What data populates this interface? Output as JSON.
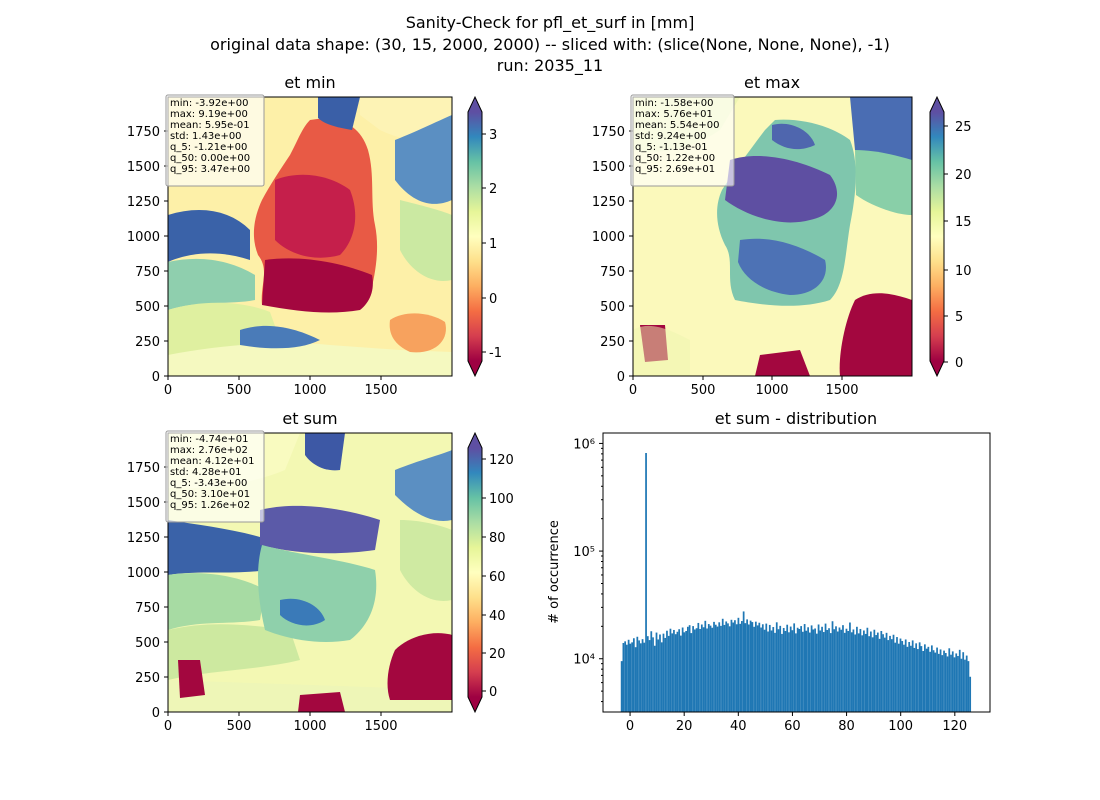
{
  "figure": {
    "title_lines": [
      "Sanity-Check for pfl_et_surf in [mm]",
      "original data shape: (30, 15, 2000, 2000) -- sliced with: (slice(None, None, None), -1)",
      "run: 2035_11"
    ]
  },
  "chart_data": [
    {
      "type": "heatmap",
      "title": "et min",
      "xlim": [
        0,
        2000
      ],
      "ylim": [
        0,
        2000
      ],
      "x_ticks": [
        0,
        500,
        1000,
        1500
      ],
      "y_ticks": [
        0,
        250,
        500,
        750,
        1000,
        1250,
        1500,
        1750
      ],
      "colormap": "Spectral",
      "colorbar": {
        "range": [
          -1.21,
          3.47
        ],
        "ticks": [
          -1,
          0,
          1,
          2,
          3
        ],
        "extend": "both"
      },
      "stats": [
        "min: -3.92e+00",
        "max: 9.19e+00",
        "mean: 5.95e-01",
        "std: 1.43e+00",
        "q_5: -1.21e+00",
        "q_50: 0.00e+00",
        "q_95: 3.47e+00"
      ]
    },
    {
      "type": "heatmap",
      "title": "et max",
      "xlim": [
        0,
        2000
      ],
      "ylim": [
        0,
        2000
      ],
      "x_ticks": [
        0,
        500,
        1000,
        1500
      ],
      "y_ticks": [
        0,
        250,
        500,
        750,
        1000,
        1250,
        1500,
        1750
      ],
      "colormap": "Spectral",
      "colorbar": {
        "range": [
          -0.113,
          26.9
        ],
        "ticks": [
          0,
          5,
          10,
          15,
          20,
          25
        ],
        "extend": "both"
      },
      "stats": [
        "min: -1.58e+00",
        "max: 5.76e+01",
        "mean: 5.54e+00",
        "std: 9.24e+00",
        "q_5: -1.13e-01",
        "q_50: 1.22e+00",
        "q_95: 2.69e+01"
      ]
    },
    {
      "type": "heatmap",
      "title": "et sum",
      "xlim": [
        0,
        2000
      ],
      "ylim": [
        0,
        2000
      ],
      "x_ticks": [
        0,
        500,
        1000,
        1500
      ],
      "y_ticks": [
        0,
        250,
        500,
        750,
        1000,
        1250,
        1500,
        1750
      ],
      "colormap": "Spectral",
      "colorbar": {
        "range": [
          -3.43,
          126
        ],
        "ticks": [
          0,
          20,
          40,
          60,
          80,
          100,
          120
        ],
        "extend": "both"
      },
      "stats": [
        "min: -4.74e+01",
        "max: 2.76e+02",
        "mean: 4.12e+01",
        "std: 4.28e+01",
        "q_5: -3.43e+00",
        "q_50: 3.10e+01",
        "q_95: 1.26e+02"
      ]
    },
    {
      "type": "bar",
      "title": "et sum - distribution",
      "xlabel": "",
      "ylabel": "# of occurrence",
      "xlim": [
        -10,
        133
      ],
      "ylim": [
        3200,
        1250000
      ],
      "y_scale": "log",
      "x_ticks": [
        0,
        20,
        40,
        60,
        80,
        100,
        120
      ],
      "y_ticks": [
        {
          "value": 10000,
          "label": "10⁴"
        },
        {
          "value": 100000,
          "label": "10⁵"
        },
        {
          "value": 1000000,
          "label": "10⁶"
        }
      ],
      "color": "#1f77b4",
      "bin_range": [
        -3.43,
        126
      ],
      "bins": 200,
      "series": [
        {
          "values": [
            9500,
            14000,
            14500,
            13500,
            15000,
            13800,
            14200,
            15500,
            12800,
            16000,
            14800,
            13900,
            15200,
            14100,
            815000,
            16200,
            14900,
            18000,
            15800,
            13200,
            17500,
            15100,
            16800,
            14200,
            17100,
            15600,
            18200,
            16300,
            19000,
            17200,
            18500,
            16900,
            17800,
            18800,
            16400,
            19500,
            17600,
            18100,
            19800,
            20500,
            17300,
            20100,
            18700,
            19200,
            21500,
            18900,
            20800,
            19600,
            22500,
            19100,
            21000,
            20300,
            19400,
            22000,
            20700,
            19900,
            21800,
            20200,
            23500,
            20600,
            22200,
            21300,
            20000,
            23000,
            21700,
            22800,
            20900,
            24000,
            21100,
            22400,
            27500,
            21400,
            23200,
            20800,
            22600,
            21900,
            19800,
            22100,
            20400,
            21600,
            19500,
            20900,
            18600,
            21200,
            17900,
            20600,
            18300,
            19700,
            17400,
            21800,
            18800,
            20200,
            17000,
            19300,
            18100,
            20700,
            17600,
            19900,
            18400,
            21300,
            17200,
            19400,
            18900,
            20100,
            17800,
            21000,
            18200,
            19600,
            17500,
            20400,
            18700,
            19100,
            17100,
            20800,
            18300,
            19800,
            17700,
            21200,
            18500,
            19200,
            17300,
            22300,
            18800,
            20000,
            17900,
            19500,
            18600,
            20500,
            17400,
            19000,
            18100,
            21700,
            17600,
            18700,
            16800,
            19800,
            17200,
            18900,
            16500,
            18300,
            17000,
            19400,
            16200,
            17900,
            15800,
            18600,
            16600,
            17500,
            15300,
            18100,
            16900,
            15700,
            17400,
            14900,
            16300,
            15200,
            16700,
            14100,
            15900,
            13800,
            15400,
            14600,
            13500,
            15100,
            12900,
            14300,
            13200,
            14800,
            12600,
            13900,
            12300,
            14200,
            13100,
            11800,
            13600,
            12400,
            12900,
            11600,
            13300,
            12000,
            11400,
            12700,
            11100,
            12200,
            10800,
            11900,
            11300,
            10500,
            12500,
            10900,
            11700,
            10300,
            11200,
            10600,
            12100,
            10000,
            11500,
            9800,
            10700,
            9500,
            6800
          ]
        }
      ]
    }
  ]
}
